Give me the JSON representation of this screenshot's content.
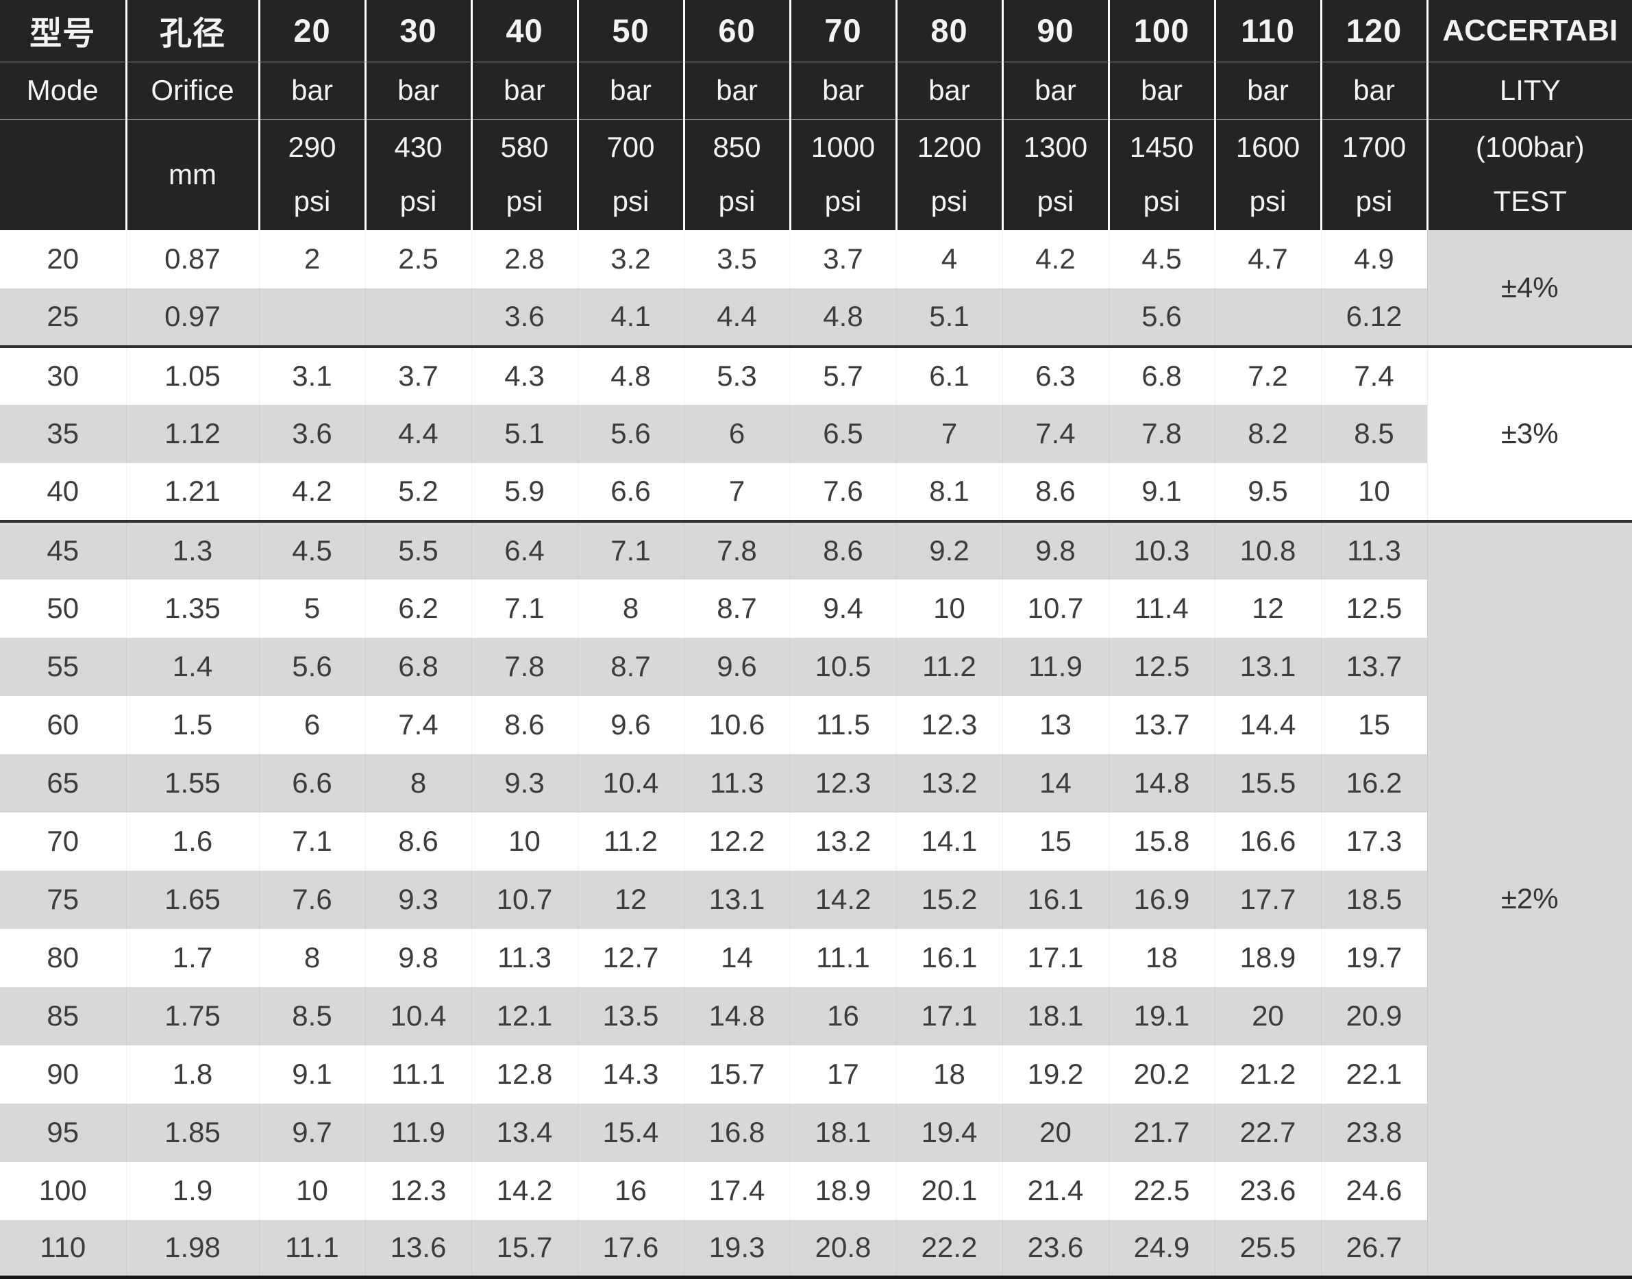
{
  "header": {
    "model": {
      "zh": "型号",
      "en": "Mode"
    },
    "orifice": {
      "zh": "孔径",
      "en": "Orifice",
      "unit": "mm"
    },
    "bar_unit": "bar",
    "psi_unit": "psi",
    "pressures": [
      {
        "bar": "20",
        "psi": "290"
      },
      {
        "bar": "30",
        "psi": "430"
      },
      {
        "bar": "40",
        "psi": "580"
      },
      {
        "bar": "50",
        "psi": "700"
      },
      {
        "bar": "60",
        "psi": "850"
      },
      {
        "bar": "70",
        "psi": "1000"
      },
      {
        "bar": "80",
        "psi": "1200"
      },
      {
        "bar": "90",
        "psi": "1300"
      },
      {
        "bar": "100",
        "psi": "1450"
      },
      {
        "bar": "110",
        "psi": "1600"
      },
      {
        "bar": "120",
        "psi": "1700"
      }
    ],
    "accuracy": {
      "line1": "ACCERTABI",
      "line2": "LITY",
      "line3": "(100bar)",
      "line4": "TEST"
    }
  },
  "rows": [
    {
      "model": "20",
      "orifice": "0.87",
      "values": [
        "2",
        "2.5",
        "2.8",
        "3.2",
        "3.5",
        "3.7",
        "4",
        "4.2",
        "4.5",
        "4.7",
        "4.9"
      ]
    },
    {
      "model": "25",
      "orifice": "0.97",
      "values": [
        "",
        "",
        "3.6",
        "4.1",
        "4.4",
        "4.8",
        "5.1",
        "",
        "5.6",
        "",
        "6.12"
      ]
    },
    {
      "model": "30",
      "orifice": "1.05",
      "values": [
        "3.1",
        "3.7",
        "4.3",
        "4.8",
        "5.3",
        "5.7",
        "6.1",
        "6.3",
        "6.8",
        "7.2",
        "7.4"
      ]
    },
    {
      "model": "35",
      "orifice": "1.12",
      "values": [
        "3.6",
        "4.4",
        "5.1",
        "5.6",
        "6",
        "6.5",
        "7",
        "7.4",
        "7.8",
        "8.2",
        "8.5"
      ]
    },
    {
      "model": "40",
      "orifice": "1.21",
      "values": [
        "4.2",
        "5.2",
        "5.9",
        "6.6",
        "7",
        "7.6",
        "8.1",
        "8.6",
        "9.1",
        "9.5",
        "10"
      ]
    },
    {
      "model": "45",
      "orifice": "1.3",
      "values": [
        "4.5",
        "5.5",
        "6.4",
        "7.1",
        "7.8",
        "8.6",
        "9.2",
        "9.8",
        "10.3",
        "10.8",
        "11.3"
      ]
    },
    {
      "model": "50",
      "orifice": "1.35",
      "values": [
        "5",
        "6.2",
        "7.1",
        "8",
        "8.7",
        "9.4",
        "10",
        "10.7",
        "11.4",
        "12",
        "12.5"
      ]
    },
    {
      "model": "55",
      "orifice": "1.4",
      "values": [
        "5.6",
        "6.8",
        "7.8",
        "8.7",
        "9.6",
        "10.5",
        "11.2",
        "11.9",
        "12.5",
        "13.1",
        "13.7"
      ]
    },
    {
      "model": "60",
      "orifice": "1.5",
      "values": [
        "6",
        "7.4",
        "8.6",
        "9.6",
        "10.6",
        "11.5",
        "12.3",
        "13",
        "13.7",
        "14.4",
        "15"
      ]
    },
    {
      "model": "65",
      "orifice": "1.55",
      "values": [
        "6.6",
        "8",
        "9.3",
        "10.4",
        "11.3",
        "12.3",
        "13.2",
        "14",
        "14.8",
        "15.5",
        "16.2"
      ]
    },
    {
      "model": "70",
      "orifice": "1.6",
      "values": [
        "7.1",
        "8.6",
        "10",
        "11.2",
        "12.2",
        "13.2",
        "14.1",
        "15",
        "15.8",
        "16.6",
        "17.3"
      ]
    },
    {
      "model": "75",
      "orifice": "1.65",
      "values": [
        "7.6",
        "9.3",
        "10.7",
        "12",
        "13.1",
        "14.2",
        "15.2",
        "16.1",
        "16.9",
        "17.7",
        "18.5"
      ]
    },
    {
      "model": "80",
      "orifice": "1.7",
      "values": [
        "8",
        "9.8",
        "11.3",
        "12.7",
        "14",
        "11.1",
        "16.1",
        "17.1",
        "18",
        "18.9",
        "19.7"
      ]
    },
    {
      "model": "85",
      "orifice": "1.75",
      "values": [
        "8.5",
        "10.4",
        "12.1",
        "13.5",
        "14.8",
        "16",
        "17.1",
        "18.1",
        "19.1",
        "20",
        "20.9"
      ]
    },
    {
      "model": "90",
      "orifice": "1.8",
      "values": [
        "9.1",
        "11.1",
        "12.8",
        "14.3",
        "15.7",
        "17",
        "18",
        "19.2",
        "20.2",
        "21.2",
        "22.1"
      ]
    },
    {
      "model": "95",
      "orifice": "1.85",
      "values": [
        "9.7",
        "11.9",
        "13.4",
        "15.4",
        "16.8",
        "18.1",
        "19.4",
        "20",
        "21.7",
        "22.7",
        "23.8"
      ]
    },
    {
      "model": "100",
      "orifice": "1.9",
      "values": [
        "10",
        "12.3",
        "14.2",
        "16",
        "17.4",
        "18.9",
        "20.1",
        "21.4",
        "22.5",
        "23.6",
        "24.6"
      ]
    },
    {
      "model": "110",
      "orifice": "1.98",
      "values": [
        "11.1",
        "13.6",
        "15.7",
        "17.6",
        "19.3",
        "20.8",
        "22.2",
        "23.6",
        "24.9",
        "25.5",
        "26.7"
      ]
    }
  ],
  "accuracy_groups": [
    {
      "label": "±4%",
      "span": 2,
      "bg": "#d8d8d8"
    },
    {
      "label": "±3%",
      "span": 3,
      "bg": "#ffffff"
    },
    {
      "label": "±2%",
      "span": 13,
      "bg": "#d8d8d8"
    }
  ],
  "colors": {
    "header_bg": "#242424",
    "header_text": "#f4f4f4",
    "row_bg": "#ffffff",
    "row_alt_bg": "#d8d8d8",
    "data_text": "#3c3c3c",
    "group_separator": "#2e2e2e",
    "grid_line": "#ffffff"
  }
}
